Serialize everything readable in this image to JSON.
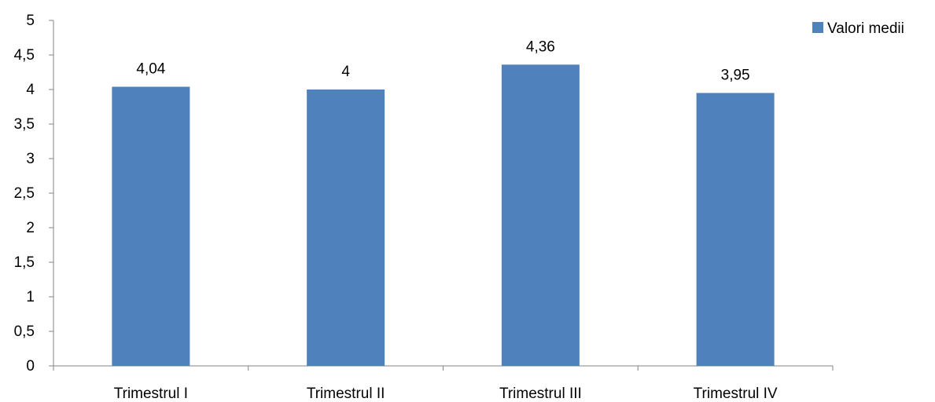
{
  "chart_data": {
    "type": "bar",
    "categories": [
      "Trimestrul I",
      "Trimestrul II",
      "Trimestrul III",
      "Trimestrul IV"
    ],
    "series": [
      {
        "name": "Valori medii",
        "values": [
          4.04,
          4,
          4.36,
          3.95
        ]
      }
    ],
    "data_labels": [
      "4,04",
      "4",
      "4,36",
      "3,95"
    ],
    "y_ticks": [
      0,
      0.5,
      1,
      1.5,
      2,
      2.5,
      3,
      3.5,
      4,
      4.5,
      5
    ],
    "y_tick_labels": [
      "0",
      "0,5",
      "1",
      "1,5",
      "2",
      "2,5",
      "3",
      "3,5",
      "4",
      "4,5",
      "5"
    ],
    "ylim": [
      0,
      5
    ],
    "title": "",
    "xlabel": "",
    "ylabel": "",
    "grid": false,
    "legend_position": "top-right",
    "bar_color": "#4F81BD",
    "axis_color": "#868686"
  }
}
